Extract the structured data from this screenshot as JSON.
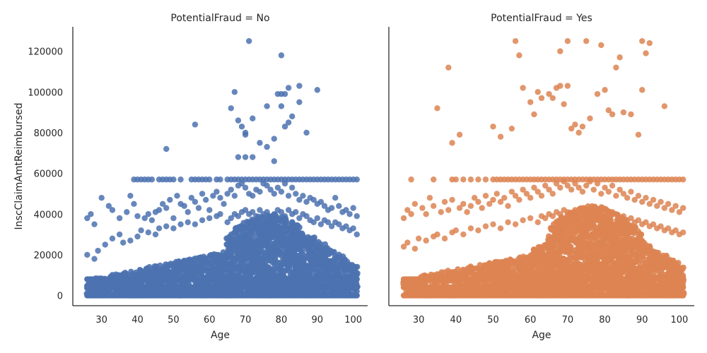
{
  "chart_data": [
    {
      "type": "scatter",
      "title": "PotentialFraud = No",
      "xlabel": "Age",
      "ylabel": "InscClaimAmtReimbursed",
      "xlim": [
        22,
        104
      ],
      "ylim": [
        -5000,
        132000
      ],
      "xticks": [
        30,
        40,
        50,
        60,
        70,
        80,
        90,
        100
      ],
      "yticks": [
        0,
        20000,
        40000,
        60000,
        80000,
        100000,
        120000
      ],
      "color": "#4C72B0",
      "series": [
        {
          "x": [
            26,
            27,
            28,
            30,
            32,
            33,
            35,
            37,
            38,
            39,
            40,
            42,
            43,
            44,
            45,
            46,
            47,
            48,
            49,
            50,
            51,
            52,
            53,
            54,
            55,
            56,
            57,
            58,
            59,
            60,
            61,
            62,
            63,
            64,
            65,
            66,
            67,
            68,
            69,
            70,
            71,
            72,
            73,
            74,
            75,
            76,
            77,
            78,
            79,
            80,
            81,
            82,
            83,
            84,
            85,
            86,
            87,
            88,
            89,
            90,
            91,
            92,
            93,
            94,
            95,
            96,
            97,
            98,
            99,
            100,
            101,
            26,
            28,
            29,
            31,
            33,
            35,
            36,
            38,
            40,
            41,
            43,
            45,
            46,
            48,
            50,
            52,
            54,
            56,
            58,
            60,
            62,
            63,
            65,
            66,
            67,
            68,
            69,
            70,
            71,
            72,
            73,
            74,
            75,
            76,
            77,
            78,
            79,
            80,
            81,
            82,
            83,
            84,
            85,
            86,
            87,
            88,
            89,
            90,
            91,
            92,
            93,
            94,
            95,
            96,
            97,
            98,
            99,
            100,
            101,
            39,
            40,
            41,
            42,
            43,
            44,
            46,
            47,
            48,
            49,
            50,
            52,
            55,
            56,
            57,
            58,
            59,
            60,
            62,
            63,
            65,
            66,
            67,
            68,
            69,
            70,
            71,
            72,
            73,
            74,
            75,
            76,
            77,
            78,
            79,
            80,
            81,
            82,
            83,
            84,
            85,
            86,
            87,
            88,
            89,
            90,
            91,
            92,
            93,
            94,
            95,
            96,
            97,
            98,
            99,
            100,
            101,
            48,
            56,
            66,
            67,
            68,
            68,
            69,
            70,
            70,
            71,
            72,
            72,
            74,
            76,
            76,
            78,
            78,
            79,
            80,
            80,
            81,
            81,
            82,
            82,
            83,
            85,
            85,
            87,
            90,
            70,
            80
          ],
          "y": [
            38000,
            40000,
            35000,
            48000,
            44000,
            42000,
            38000,
            41000,
            49000,
            45000,
            39000,
            38000,
            40000,
            37000,
            41000,
            42000,
            45000,
            43000,
            47000,
            38000,
            49000,
            45000,
            44000,
            41000,
            48000,
            46000,
            43000,
            50000,
            47000,
            42000,
            49000,
            51000,
            48000,
            45000,
            50000,
            52000,
            49000,
            54000,
            55000,
            53000,
            50000,
            49000,
            52000,
            51000,
            55000,
            54000,
            52000,
            50000,
            53000,
            51000,
            55000,
            49000,
            53000,
            50000,
            47000,
            49000,
            46000,
            48000,
            47000,
            45000,
            46000,
            44000,
            42000,
            43000,
            48000,
            44000,
            41000,
            42000,
            40000,
            43000,
            39000,
            20000,
            18000,
            22000,
            25000,
            28000,
            30000,
            26000,
            27000,
            29000,
            32000,
            31000,
            30000,
            33000,
            34000,
            33000,
            35000,
            36000,
            35000,
            37000,
            38000,
            39000,
            40000,
            36000,
            38000,
            40000,
            39000,
            41000,
            42000,
            40000,
            41000,
            39000,
            42000,
            40000,
            41000,
            38000,
            40000,
            42000,
            41000,
            39000,
            42000,
            40000,
            41000,
            38000,
            40000,
            39000,
            37000,
            36000,
            38000,
            35000,
            37000,
            36000,
            34000,
            36000,
            35000,
            33000,
            34000,
            32000,
            33000,
            30000,
            57000,
            57000,
            57000,
            57000,
            57000,
            57000,
            57000,
            57000,
            57000,
            57000,
            57000,
            57000,
            57000,
            57000,
            57000,
            57000,
            57000,
            57000,
            57000,
            57000,
            57000,
            57000,
            57000,
            57000,
            57000,
            57000,
            57000,
            57000,
            57000,
            57000,
            57000,
            57000,
            57000,
            57000,
            57000,
            57000,
            57000,
            57000,
            57000,
            57000,
            57000,
            57000,
            57000,
            57000,
            57000,
            57000,
            57000,
            57000,
            57000,
            57000,
            57000,
            57000,
            57000,
            57000,
            57000,
            57000,
            57000,
            72000,
            84000,
            92000,
            100000,
            68000,
            86000,
            83000,
            80000,
            68000,
            125000,
            87000,
            68000,
            75000,
            93000,
            73000,
            77000,
            66000,
            99000,
            118000,
            93000,
            83000,
            99000,
            85000,
            102000,
            88000,
            103000,
            95000,
            80000,
            101000,
            79000,
            99000
          ]
        }
      ]
    },
    {
      "type": "scatter",
      "title": "PotentialFraud = Yes",
      "xlabel": "Age",
      "ylabel": "",
      "xlim": [
        22,
        104
      ],
      "ylim": [
        -5000,
        132000
      ],
      "xticks": [
        30,
        40,
        50,
        60,
        70,
        80,
        90,
        100
      ],
      "yticks": [
        0,
        20000,
        40000,
        60000,
        80000,
        100000,
        120000
      ],
      "color": "#DD8452",
      "series": [
        {
          "x": [
            26,
            27,
            28,
            29,
            31,
            32,
            33,
            34,
            36,
            37,
            38,
            39,
            41,
            42,
            43,
            44,
            45,
            46,
            47,
            48,
            49,
            50,
            51,
            52,
            53,
            54,
            55,
            56,
            57,
            58,
            59,
            60,
            61,
            62,
            63,
            64,
            65,
            66,
            67,
            68,
            69,
            70,
            71,
            72,
            73,
            74,
            75,
            76,
            77,
            78,
            79,
            80,
            81,
            82,
            83,
            84,
            85,
            86,
            87,
            88,
            89,
            90,
            91,
            92,
            93,
            94,
            95,
            96,
            97,
            98,
            99,
            100,
            101,
            26,
            27,
            29,
            30,
            32,
            34,
            35,
            37,
            39,
            40,
            42,
            44,
            46,
            48,
            50,
            52,
            54,
            56,
            58,
            60,
            62,
            63,
            64,
            65,
            66,
            67,
            68,
            69,
            70,
            71,
            72,
            73,
            74,
            75,
            76,
            77,
            78,
            79,
            80,
            81,
            82,
            83,
            84,
            85,
            86,
            87,
            88,
            89,
            90,
            91,
            92,
            93,
            94,
            95,
            96,
            97,
            98,
            99,
            100,
            101,
            28,
            34,
            39,
            40,
            42,
            44,
            46,
            48,
            50,
            51,
            52,
            53,
            54,
            55,
            56,
            57,
            58,
            59,
            60,
            61,
            62,
            63,
            64,
            65,
            66,
            67,
            68,
            69,
            70,
            71,
            72,
            73,
            74,
            75,
            76,
            77,
            78,
            79,
            80,
            81,
            82,
            83,
            84,
            85,
            86,
            87,
            88,
            89,
            90,
            91,
            92,
            93,
            94,
            95,
            96,
            97,
            98,
            99,
            100,
            101,
            35,
            38,
            39,
            41,
            50,
            52,
            55,
            56,
            57,
            58,
            60,
            61,
            62,
            63,
            65,
            66,
            67,
            68,
            68,
            69,
            70,
            70,
            71,
            72,
            73,
            74,
            75,
            76,
            78,
            79,
            80,
            81,
            82,
            83,
            84,
            85,
            87,
            89,
            90,
            90,
            91,
            92,
            96
          ],
          "y": [
            38000,
            42000,
            40000,
            45000,
            43000,
            40000,
            48000,
            44000,
            41000,
            46000,
            42000,
            47000,
            43000,
            45000,
            41000,
            44000,
            48000,
            46000,
            43000,
            49000,
            45000,
            47000,
            50000,
            46000,
            48000,
            44000,
            51000,
            49000,
            47000,
            52000,
            50000,
            48000,
            53000,
            51000,
            49000,
            54000,
            52000,
            50000,
            55000,
            53000,
            56000,
            54000,
            52000,
            55000,
            53000,
            51000,
            54000,
            56000,
            52000,
            55000,
            50000,
            53000,
            51000,
            54000,
            49000,
            52000,
            50000,
            48000,
            51000,
            47000,
            49000,
            46000,
            48000,
            45000,
            47000,
            44000,
            46000,
            43000,
            45000,
            42000,
            44000,
            41000,
            43000,
            24000,
            26000,
            23000,
            28000,
            27000,
            29000,
            30000,
            28000,
            31000,
            32000,
            30000,
            33000,
            32000,
            34000,
            35000,
            33000,
            36000,
            35000,
            37000,
            38000,
            36000,
            39000,
            38000,
            40000,
            39000,
            41000,
            40000,
            42000,
            41000,
            40000,
            42000,
            41000,
            39000,
            42000,
            40000,
            41000,
            38000,
            40000,
            42000,
            39000,
            41000,
            40000,
            38000,
            39000,
            37000,
            38000,
            36000,
            37000,
            35000,
            36000,
            34000,
            35000,
            33000,
            34000,
            32000,
            33000,
            31000,
            32000,
            30000,
            31000,
            57000,
            57000,
            57000,
            57000,
            57000,
            57000,
            57000,
            57000,
            57000,
            57000,
            57000,
            57000,
            57000,
            57000,
            57000,
            57000,
            57000,
            57000,
            57000,
            57000,
            57000,
            57000,
            57000,
            57000,
            57000,
            57000,
            57000,
            57000,
            57000,
            57000,
            57000,
            57000,
            57000,
            57000,
            57000,
            57000,
            57000,
            57000,
            57000,
            57000,
            57000,
            57000,
            57000,
            57000,
            57000,
            57000,
            57000,
            57000,
            57000,
            57000,
            57000,
            57000,
            57000,
            57000,
            57000,
            57000,
            57000,
            57000,
            57000,
            57000,
            92000,
            112000,
            75000,
            79000,
            83000,
            78000,
            82000,
            125000,
            118000,
            102000,
            95000,
            89000,
            100000,
            97000,
            99000,
            97000,
            102000,
            103000,
            120000,
            94000,
            125000,
            103000,
            82000,
            84000,
            80000,
            83000,
            125000,
            87000,
            99000,
            123000,
            101000,
            91000,
            89000,
            112000,
            117000,
            90000,
            89000,
            79000,
            125000,
            101000,
            119000,
            124000,
            93000
          ]
        }
      ]
    }
  ]
}
